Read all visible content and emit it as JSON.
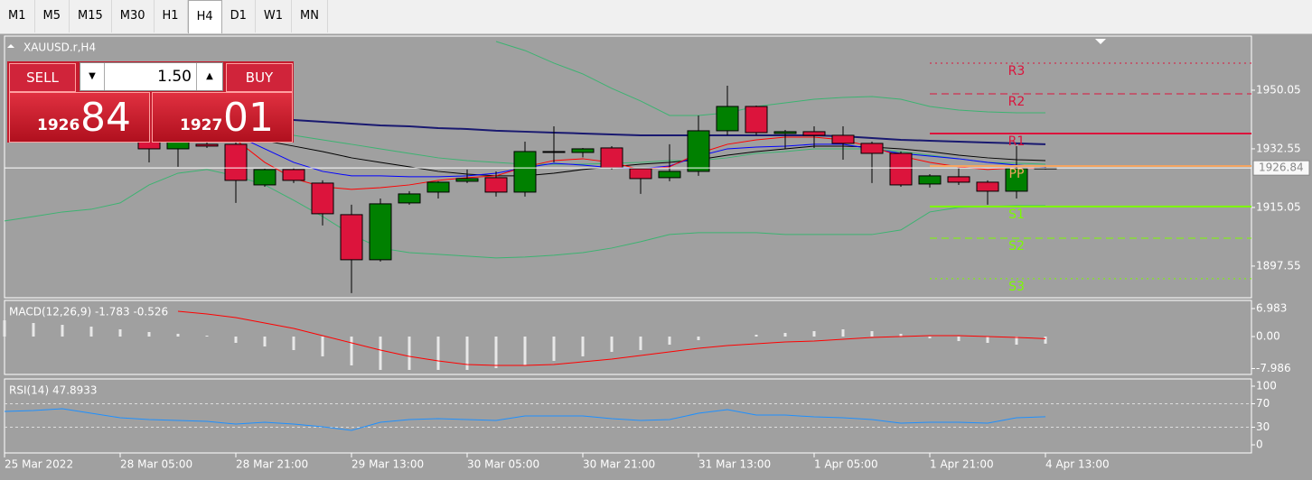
{
  "toolbar": {
    "timeframes": [
      "M1",
      "M5",
      "M15",
      "M30",
      "H1",
      "H4",
      "D1",
      "W1",
      "MN"
    ],
    "selected_index": 5
  },
  "trade_panel": {
    "sell_label": "SELL",
    "buy_label": "BUY",
    "volume": "1.50",
    "sell_price": {
      "prefix": "1926",
      "suffix": "84"
    },
    "buy_price": {
      "prefix": "1927",
      "suffix": "01"
    }
  },
  "chart_data": [
    {
      "type": "candlestick",
      "title": "XAUUSD.r,H4",
      "categories": [
        "25 Mar 2022",
        null,
        null,
        null,
        "28 Mar 05:00",
        null,
        null,
        null,
        "28 Mar 21:00",
        null,
        null,
        null,
        "29 Mar 13:00",
        null,
        null,
        null,
        "30 Mar 05:00",
        null,
        null,
        null,
        "30 Mar 21:00",
        null,
        null,
        null,
        "31 Mar 13:00",
        null,
        null,
        null,
        "1 Apr 05:00",
        null,
        null,
        null,
        "1 Apr 21:00",
        null,
        null,
        null,
        "4 Apr 13:00"
      ],
      "open": [
        null,
        null,
        null,
        null,
        null,
        1935.24,
        1932.55,
        1933.9,
        1933.9,
        1921.78,
        1926.36,
        1922.32,
        1912.9,
        1899.44,
        1916.4,
        1919.63,
        1922.86,
        1923.94,
        1919.63,
        1931.74,
        1931.47,
        1932.82,
        1926.63,
        1923.94,
        1925.82,
        1937.94,
        1945.2,
        1937.13,
        1937.67,
        1936.59,
        1934.17,
        1931.2,
        1922.05,
        1924.21,
        1922.59,
        1919.9,
        1926.63
      ],
      "high": [
        null,
        null,
        null,
        null,
        null,
        1936.59,
        1936.59,
        1934.7,
        1934.7,
        1926.63,
        1926.9,
        1923.13,
        1915.86,
        1917.74,
        1919.9,
        1922.86,
        1926.36,
        1925.82,
        1934.7,
        1939.28,
        1932.82,
        1933.36,
        1926.9,
        1933.9,
        1942.51,
        1951.4,
        1945.47,
        1938.2,
        1939.28,
        1939.28,
        1934.7,
        1931.74,
        1925.0,
        1926.9,
        1923.13,
        1933.36,
        1927.44
      ],
      "low": [
        null,
        null,
        null,
        null,
        null,
        1928.51,
        1927.17,
        1932.82,
        1916.4,
        1921.24,
        1922.32,
        1909.67,
        1889.48,
        1898.9,
        1915.86,
        1917.74,
        1922.32,
        1918.28,
        1918.28,
        1928.51,
        1930.0,
        1926.36,
        1919.09,
        1922.86,
        1924.48,
        1936.59,
        1936.59,
        1932.55,
        1932.82,
        1929.32,
        1922.32,
        1921.24,
        1921.0,
        1921.78,
        1915.86,
        1917.74,
        1926.36
      ],
      "close": [
        null,
        null,
        null,
        null,
        null,
        1932.55,
        1935.24,
        1933.36,
        1923.13,
        1926.36,
        1923.13,
        1913.17,
        1899.44,
        1916.13,
        1919.09,
        1922.59,
        1923.67,
        1919.63,
        1931.74,
        1931.47,
        1932.55,
        1926.9,
        1923.67,
        1925.82,
        1937.94,
        1945.2,
        1937.4,
        1937.67,
        1936.59,
        1934.17,
        1931.2,
        1921.78,
        1924.48,
        1922.59,
        1919.9,
        1926.63,
        1926.84
      ],
      "up_color": "#008000",
      "down_color": "#dc143c",
      "series": [
        {
          "color": "#3cb371",
          "values": [
            null,
            null,
            null,
            null,
            null,
            null,
            null,
            null,
            null,
            null,
            null,
            null,
            null,
            null,
            null,
            null,
            null,
            1964.59,
            1961.9,
            1958.13,
            1954.9,
            1950.59,
            1946.82,
            1942.51,
            1942.51,
            1943.32,
            1945.2,
            1946.28,
            1947.36,
            1947.9,
            1948.17,
            1947.36,
            1945.2,
            1944.13,
            1943.59,
            1943.32,
            1943.32
          ]
        },
        {
          "color": "#3cb371",
          "values": [
            null,
            null,
            null,
            null,
            null,
            null,
            null,
            null,
            1939.28,
            1937.94,
            1936.59,
            1935.24,
            1933.9,
            1932.55,
            1931.2,
            1929.86,
            1929.05,
            1928.51,
            1927.97,
            1927.97,
            1927.97,
            1928.24,
            1928.51,
            1929.05,
            1929.05,
            1929.86,
            1931.2,
            1931.74,
            1932.55,
            1932.55,
            1932.55,
            1931.74,
            1930.66,
            1929.59,
            1928.51,
            1928.24,
            1927.97
          ]
        },
        {
          "color": "#3cb371",
          "values": [
            1911.01,
            1912.35,
            1913.7,
            1914.51,
            1916.4,
            1921.78,
            1925.28,
            1926.36,
            1924.48,
            1921.78,
            1917.2,
            1912.35,
            1906.97,
            1902.93,
            1901.58,
            1901.05,
            1900.51,
            1899.97,
            1900.24,
            1900.78,
            1901.58,
            1902.93,
            1904.82,
            1906.97,
            1907.51,
            1907.51,
            1907.51,
            1906.97,
            1906.97,
            1906.97,
            1906.97,
            1908.32,
            1913.7,
            1915.05,
            1915.32,
            1915.59,
            1915.59
          ]
        },
        {
          "color": "#191970",
          "width": 2,
          "values": [
            null,
            null,
            null,
            null,
            null,
            1943.32,
            1942.78,
            1941.97,
            1941.7,
            1941.43,
            1941.16,
            1940.63,
            1940.09,
            1939.55,
            1939.28,
            1938.74,
            1938.47,
            1937.94,
            1937.67,
            1937.4,
            1937.13,
            1936.86,
            1936.59,
            1936.59,
            1936.59,
            1936.59,
            1936.59,
            1936.59,
            1936.59,
            1936.32,
            1935.78,
            1935.24,
            1934.97,
            1934.7,
            1934.43,
            1934.17,
            1933.9
          ]
        },
        {
          "color": "#000000",
          "values": [
            null,
            null,
            null,
            null,
            null,
            1939.28,
            1938.47,
            1937.4,
            1936.59,
            1934.97,
            1933.36,
            1931.74,
            1929.86,
            1928.51,
            1927.17,
            1925.82,
            1925.01,
            1924.48,
            1924.48,
            1925.28,
            1926.36,
            1927.17,
            1927.97,
            1928.51,
            1929.32,
            1930.66,
            1931.74,
            1932.55,
            1933.36,
            1933.36,
            1933.09,
            1932.55,
            1931.74,
            1930.66,
            1929.86,
            1929.32,
            1929.05
          ]
        },
        {
          "color": "#0000ff",
          "values": [
            null,
            null,
            null,
            null,
            null,
            null,
            null,
            null,
            1936.59,
            1932.55,
            1928.51,
            1925.82,
            1924.48,
            1924.48,
            1924.21,
            1924.21,
            1924.48,
            1925.28,
            1926.9,
            1928.24,
            1927.7,
            1926.9,
            1926.63,
            1927.43,
            1930.39,
            1932.55,
            1933.09,
            1933.36,
            1933.9,
            1933.9,
            1932.55,
            1931.2,
            1930.39,
            1929.59,
            1928.51,
            1927.7,
            1927.17
          ]
        },
        {
          "color": "#ff0000",
          "values": [
            null,
            null,
            null,
            null,
            null,
            null,
            null,
            null,
            1935.24,
            1928.51,
            1923.67,
            1921.24,
            1920.44,
            1920.97,
            1921.78,
            1923.13,
            1923.94,
            1924.48,
            1927.17,
            1929.05,
            1929.59,
            1928.51,
            1926.36,
            1927.17,
            1931.2,
            1933.9,
            1935.24,
            1936.05,
            1936.05,
            1935.24,
            1933.09,
            1930.39,
            1928.51,
            1927.17,
            1926.36,
            1926.9,
            1926.63
          ]
        }
      ],
      "levels": [
        {
          "label": "R3",
          "value": 1958.13,
          "color": "#dc143c",
          "style": "dotted"
        },
        {
          "label": "R2",
          "value": 1948.97,
          "color": "#dc143c",
          "style": "dashed"
        },
        {
          "label": "R1",
          "value": 1937.13,
          "color": "#dc143c",
          "style": "solid"
        },
        {
          "label": "PP",
          "value": 1927.43,
          "color": "#f4a460",
          "style": "solid"
        },
        {
          "label": "S1",
          "value": 1915.32,
          "color": "#7cfc00",
          "style": "solid"
        },
        {
          "label": "S2",
          "value": 1905.89,
          "color": "#7cfc00",
          "style": "dashed"
        },
        {
          "label": "S3",
          "value": 1893.78,
          "color": "#7cfc00",
          "style": "dotted"
        }
      ],
      "current_price": 1926.84,
      "ylim": [
        1888.1,
        1966.2
      ],
      "yticks": [
        1950.05,
        1932.55,
        1915.05,
        1897.55
      ]
    },
    {
      "type": "macd",
      "title": "MACD(12,26,9) -1.783 -0.526",
      "histogram_color": "#e8e8e8",
      "values": [
        4.05,
        3.38,
        2.93,
        2.48,
        1.8,
        1.13,
        0.68,
        0.23,
        -1.58,
        -2.48,
        -3.38,
        -4.95,
        -7.21,
        -8.33,
        -8.33,
        -8.33,
        -8.33,
        -7.88,
        -7.21,
        -6.08,
        -4.95,
        -3.83,
        -3.38,
        -2.03,
        -0.9,
        0,
        0.45,
        0.9,
        1.35,
        1.8,
        1.35,
        0.68,
        -0.45,
        -1.13,
        -1.58,
        -2.03,
        -1.783
      ],
      "series": [
        {
          "color": "#ff0000",
          "values": [
            null,
            null,
            null,
            null,
            null,
            null,
            6.31,
            5.63,
            4.73,
            3.38,
            2.03,
            0.23,
            -1.58,
            -3.38,
            -4.95,
            -6.08,
            -6.98,
            -7.21,
            -7.21,
            -6.98,
            -6.31,
            -5.63,
            -4.73,
            -3.83,
            -2.93,
            -2.25,
            -1.8,
            -1.35,
            -1.13,
            -0.68,
            -0.23,
            0,
            0.23,
            0.23,
            0,
            -0.23,
            -0.526
          ]
        }
      ],
      "ylim": [
        -9.46,
        9.01
      ],
      "yticks": [
        6.983,
        {
          "value": 0,
          "label": "0.00"
        },
        -7.986
      ]
    },
    {
      "type": "line",
      "title": "RSI(14) 47.8933",
      "series": [
        {
          "color": "#1e90ff",
          "values": [
            56.9,
            58.5,
            61.5,
            53.8,
            46.2,
            43.1,
            41.5,
            40.0,
            35.4,
            38.5,
            35.4,
            30.8,
            24.6,
            38.5,
            43.1,
            44.6,
            43.1,
            41.5,
            49.2,
            49.2,
            49.2,
            44.6,
            41.5,
            43.1,
            53.8,
            60.0,
            50.8,
            50.8,
            47.7,
            46.2,
            43.1,
            36.9,
            38.5,
            38.5,
            36.9,
            46.2,
            47.89
          ]
        }
      ],
      "levels": [
        {
          "value": 70
        },
        {
          "value": 30
        }
      ],
      "ylim": [
        -13.8,
        112.3
      ],
      "yticks": [
        100,
        70,
        30,
        0
      ]
    }
  ]
}
